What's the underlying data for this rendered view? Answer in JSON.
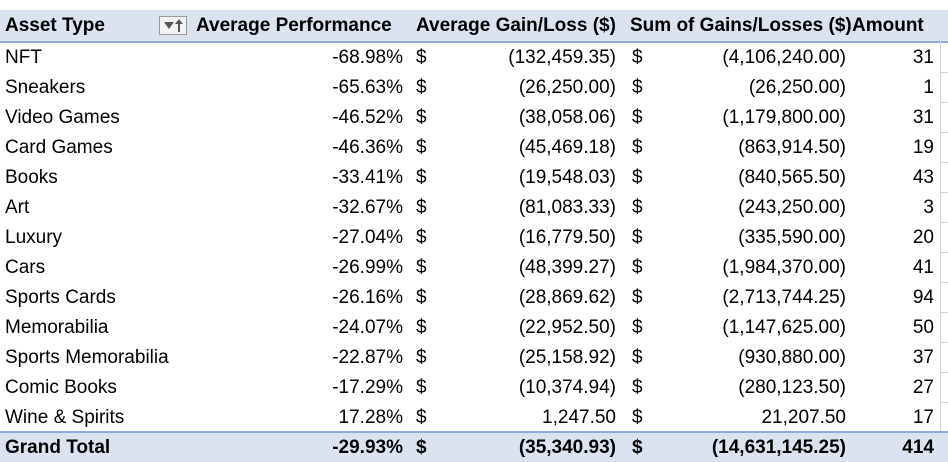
{
  "pivot": {
    "headers": {
      "asset_type": "Asset Type",
      "avg_performance": "Average Performance",
      "avg_gain_loss": "Average Gain/Loss ($)",
      "sum_gains_losses": "Sum of Gains/Losses ($)",
      "amount": "Amount"
    },
    "filter_icon": "filter-sort-icon",
    "currency_symbol": "$",
    "rows": [
      {
        "asset": "NFT",
        "performance": "-68.98%",
        "avg_gain": "(132,459.35)",
        "sum": "(4,106,240.00)",
        "amount": "31"
      },
      {
        "asset": "Sneakers",
        "performance": "-65.63%",
        "avg_gain": "(26,250.00)",
        "sum": "(26,250.00)",
        "amount": "1"
      },
      {
        "asset": "Video Games",
        "performance": "-46.52%",
        "avg_gain": "(38,058.06)",
        "sum": "(1,179,800.00)",
        "amount": "31"
      },
      {
        "asset": "Card Games",
        "performance": "-46.36%",
        "avg_gain": "(45,469.18)",
        "sum": "(863,914.50)",
        "amount": "19"
      },
      {
        "asset": "Books",
        "performance": "-33.41%",
        "avg_gain": "(19,548.03)",
        "sum": "(840,565.50)",
        "amount": "43"
      },
      {
        "asset": "Art",
        "performance": "-32.67%",
        "avg_gain": "(81,083.33)",
        "sum": "(243,250.00)",
        "amount": "3"
      },
      {
        "asset": "Luxury",
        "performance": "-27.04%",
        "avg_gain": "(16,779.50)",
        "sum": "(335,590.00)",
        "amount": "20"
      },
      {
        "asset": "Cars",
        "performance": "-26.99%",
        "avg_gain": "(48,399.27)",
        "sum": "(1,984,370.00)",
        "amount": "41"
      },
      {
        "asset": "Sports Cards",
        "performance": "-26.16%",
        "avg_gain": "(28,869.62)",
        "sum": "(2,713,744.25)",
        "amount": "94"
      },
      {
        "asset": "Memorabilia",
        "performance": "-24.07%",
        "avg_gain": "(22,952.50)",
        "sum": "(1,147,625.00)",
        "amount": "50"
      },
      {
        "asset": "Sports Memorabilia",
        "performance": "-22.87%",
        "avg_gain": "(25,158.92)",
        "sum": "(930,880.00)",
        "amount": "37"
      },
      {
        "asset": "Comic Books",
        "performance": "-17.29%",
        "avg_gain": "(10,374.94)",
        "sum": "(280,123.50)",
        "amount": "27"
      },
      {
        "asset": "Wine & Spirits",
        "performance": "17.28%",
        "avg_gain": "1,247.50",
        "sum": "21,207.50",
        "amount": "17"
      }
    ],
    "total": {
      "asset": "Grand Total",
      "performance": "-29.93%",
      "avg_gain": "(35,340.93)",
      "sum": "(14,631,145.25)",
      "amount": "414"
    },
    "colors": {
      "header_bg": "#dbe3f1",
      "header_border": "#8ea9db"
    }
  }
}
